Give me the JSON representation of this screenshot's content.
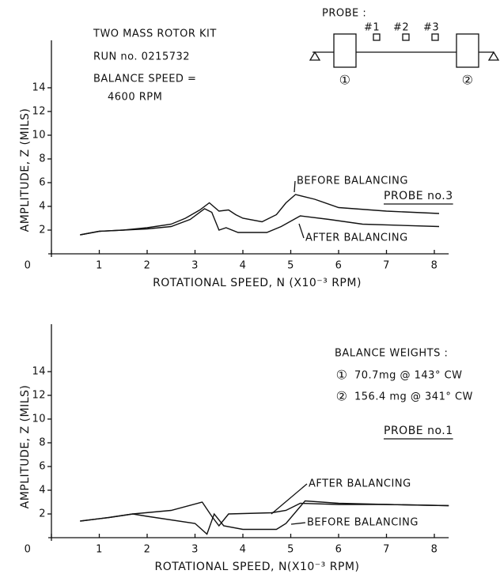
{
  "chart_data": [
    {
      "type": "line",
      "header": [
        "TWO MASS ROTOR KIT",
        "RUN no. 0215732",
        "BALANCE SPEED =",
        "4600 RPM"
      ],
      "probe_diagram": {
        "title": "PROBE :",
        "probes": [
          "#1",
          "#2",
          "#3"
        ],
        "masses": [
          "①",
          "②"
        ]
      },
      "subtitle": "PROBE no.3",
      "x_label": "ROTATIONAL SPEED, N (X10⁻³ RPM)",
      "y_label": "AMPLITUDE, Z (MILS)",
      "xlim": [
        0,
        8.3
      ],
      "ylim": [
        0,
        18
      ],
      "xticks": [
        0,
        1,
        2,
        3,
        4,
        5,
        6,
        7,
        8
      ],
      "yticks": [
        2,
        4,
        6,
        8,
        10,
        12,
        14
      ],
      "color": "#111111",
      "series": [
        {
          "name": "BEFORE BALANCING",
          "x": [
            0.6,
            1,
            1.5,
            2,
            2.5,
            2.8,
            3.1,
            3.3,
            3.5,
            3.7,
            3.85,
            4.0,
            4.4,
            4.7,
            4.9,
            5.1,
            5.5,
            6,
            7,
            8.1
          ],
          "values": [
            1.6,
            1.9,
            2.0,
            2.2,
            2.5,
            3.0,
            3.7,
            4.3,
            3.6,
            3.7,
            3.3,
            3.0,
            2.7,
            3.3,
            4.3,
            5.0,
            4.6,
            3.9,
            3.6,
            3.4
          ]
        },
        {
          "name": "AFTER BALANCING",
          "x": [
            0.6,
            1,
            1.5,
            2,
            2.5,
            2.9,
            3.2,
            3.35,
            3.5,
            3.65,
            3.9,
            4.5,
            4.8,
            5.2,
            5.8,
            6.5,
            8.1
          ],
          "values": [
            1.6,
            1.9,
            2.0,
            2.1,
            2.3,
            2.9,
            3.8,
            3.5,
            2.0,
            2.2,
            1.8,
            1.8,
            2.3,
            3.2,
            2.9,
            2.5,
            2.3
          ]
        }
      ]
    },
    {
      "type": "line",
      "balance_weights": {
        "title": "BALANCE WEIGHTS :",
        "rows": [
          {
            "mass": "①",
            "text": "70.7mg @ 143° CW"
          },
          {
            "mass": "②",
            "text": "156.4 mg @ 341° CW"
          }
        ]
      },
      "subtitle": "PROBE no.1",
      "x_label": "ROTATIONAL SPEED, N(X10⁻³ RPM)",
      "y_label": "AMPLITUDE, Z (MILS)",
      "xlim": [
        0,
        8.3
      ],
      "ylim": [
        0,
        18
      ],
      "xticks": [
        0,
        1,
        2,
        3,
        4,
        5,
        6,
        7,
        8
      ],
      "yticks": [
        2,
        4,
        6,
        8,
        10,
        12,
        14
      ],
      "color": "#111111",
      "series": [
        {
          "name": "AFTER BALANCING",
          "x": [
            0.6,
            1.2,
            1.7,
            2.5,
            3.15,
            3.35,
            3.5,
            3.7,
            4.6,
            4.9,
            5.2,
            6,
            7,
            8.3
          ],
          "values": [
            1.4,
            1.7,
            2.0,
            2.3,
            3.0,
            1.8,
            1.0,
            2.0,
            2.1,
            2.3,
            2.9,
            2.8,
            2.8,
            2.7
          ]
        },
        {
          "name": "BEFORE BALANCING",
          "x": [
            0.6,
            1.2,
            1.7,
            2,
            3,
            3.25,
            3.4,
            3.6,
            4.0,
            4.7,
            4.9,
            5.3,
            6,
            7,
            8.3
          ],
          "values": [
            1.4,
            1.7,
            2.0,
            1.8,
            1.2,
            0.3,
            2.0,
            1.0,
            0.7,
            0.7,
            1.2,
            3.1,
            2.9,
            2.8,
            2.7
          ]
        }
      ]
    }
  ]
}
